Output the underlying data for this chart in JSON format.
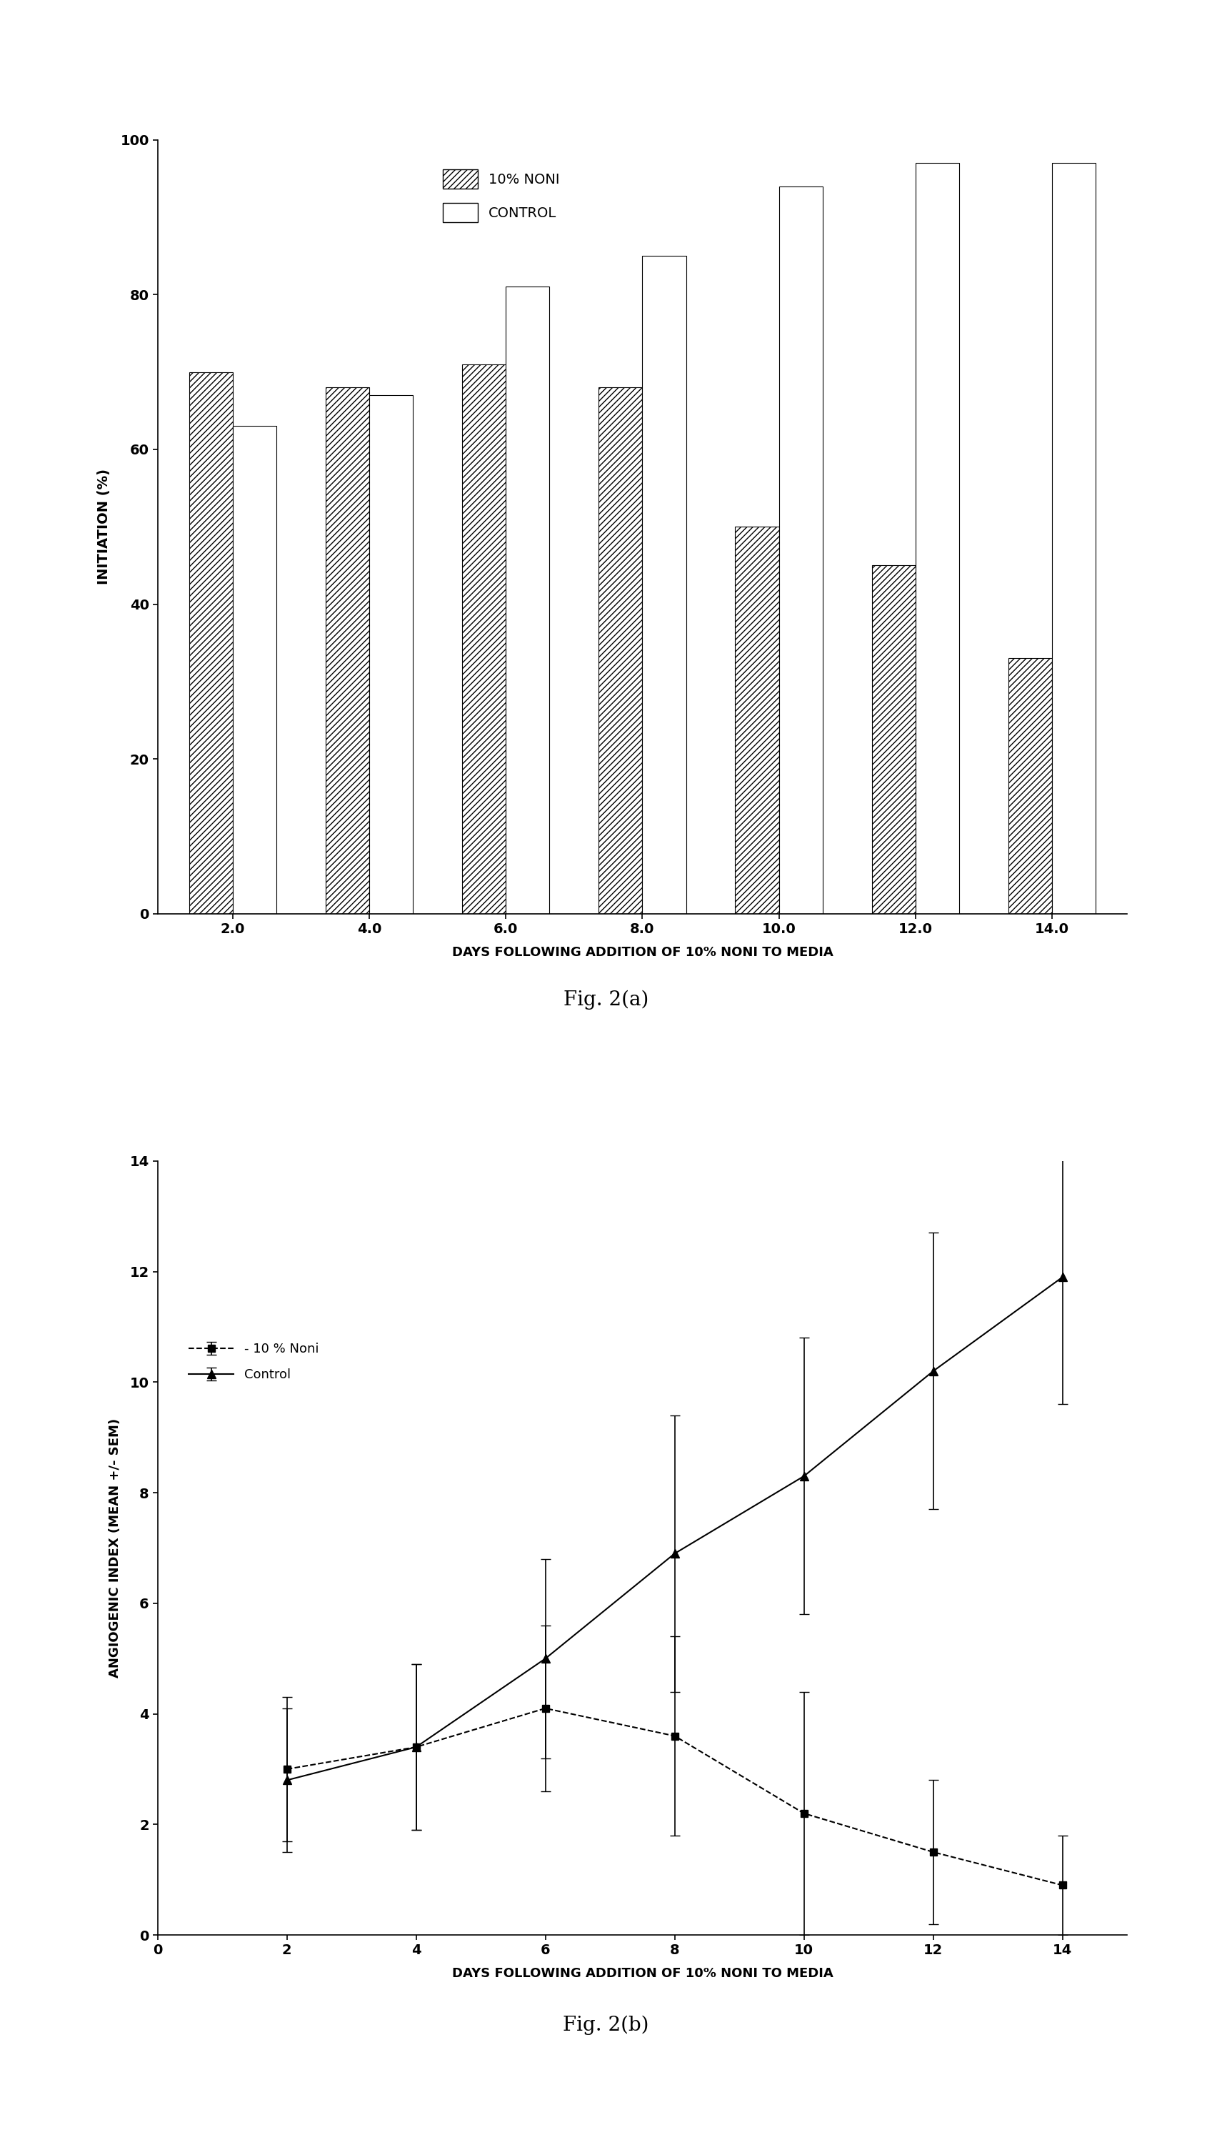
{
  "fig2a": {
    "days": [
      "2.0",
      "4.0",
      "6.0",
      "8.0",
      "10.0",
      "12.0",
      "14.0"
    ],
    "noni_values": [
      70,
      68,
      71,
      68,
      50,
      45,
      33
    ],
    "control_values": [
      63,
      67,
      81,
      85,
      94,
      97,
      97
    ],
    "ylabel": "INITIATION (%)",
    "xlabel": "DAYS FOLLOWING ADDITION OF 10% NONI TO MEDIA",
    "ylim": [
      0,
      100
    ],
    "yticks": [
      0,
      20,
      40,
      60,
      80,
      100
    ],
    "legend_noni": "10% NONI",
    "legend_control": "CONTROL",
    "caption": "Fig. 2(a)"
  },
  "fig2b": {
    "days": [
      2,
      4,
      6,
      8,
      10,
      12,
      14
    ],
    "noni_values": [
      3.0,
      3.4,
      4.1,
      3.6,
      2.2,
      1.5,
      0.9
    ],
    "control_values": [
      2.8,
      3.4,
      5.0,
      6.9,
      8.3,
      10.2,
      11.9
    ],
    "noni_errors": [
      1.3,
      1.5,
      1.5,
      1.8,
      2.2,
      1.3,
      0.9
    ],
    "control_errors": [
      1.3,
      1.5,
      1.8,
      2.5,
      2.5,
      2.5,
      2.3
    ],
    "ylabel": "ANGIOGENIC INDEX (MEAN +/- SEM)",
    "xlabel": "DAYS FOLLOWING ADDITION OF 10% NONI TO MEDIA",
    "ylim": [
      0,
      14
    ],
    "yticks": [
      0,
      2,
      4,
      6,
      8,
      10,
      12,
      14
    ],
    "xlim": [
      0,
      15
    ],
    "xticks": [
      0,
      2,
      4,
      6,
      8,
      10,
      12,
      14
    ],
    "legend_noni": "- 10 % Noni",
    "legend_control": "Control",
    "caption": "Fig. 2(b)"
  },
  "background_color": "#ffffff",
  "bar_width": 0.32
}
